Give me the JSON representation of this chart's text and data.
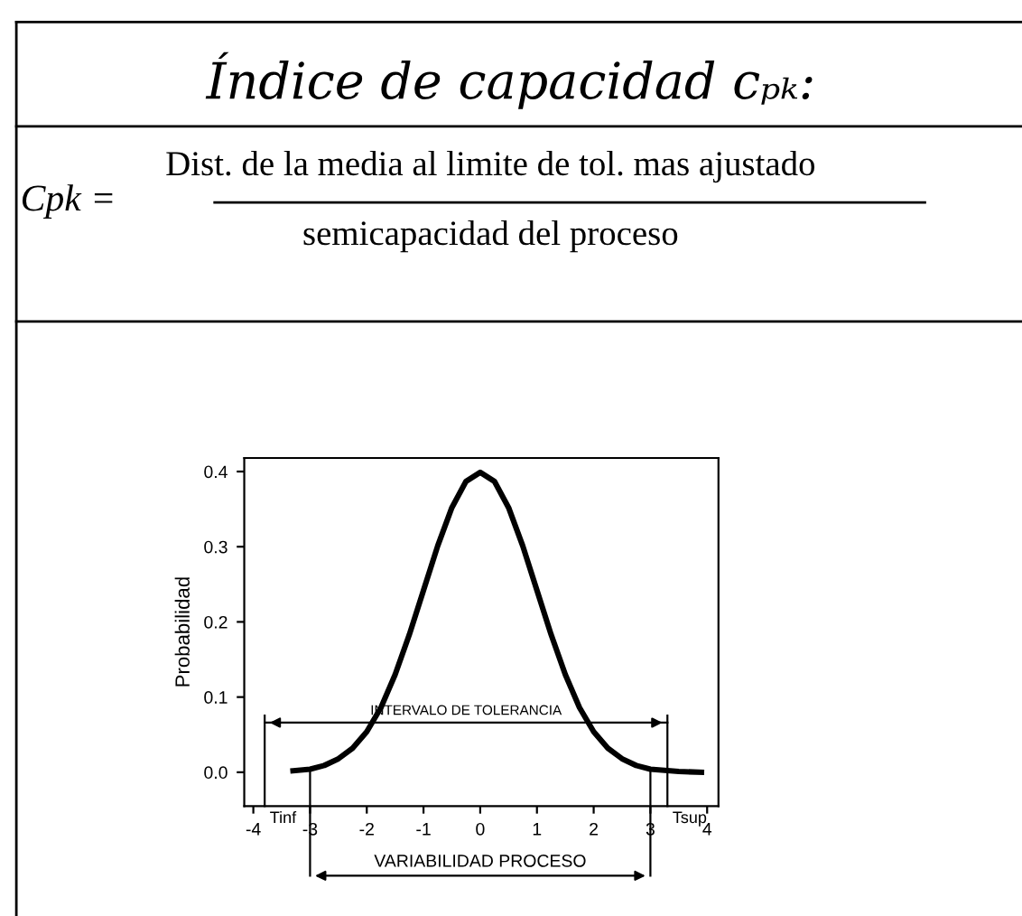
{
  "chart_data": {
    "type": "line",
    "title": "Índice de capacidad cₚₖ:",
    "annotations": [
      "Cpk =",
      "Dist. de la media al limite de tol. mas ajustado",
      "semicapacidad del proceso",
      "INTERVALO DE TOLERANCIA",
      "VARIABILIDAD PROCESO"
    ],
    "ylabel": "Probabilidad",
    "x": [
      -3.3,
      -3,
      -2.75,
      -2.5,
      -2.25,
      -2,
      -1.75,
      -1.5,
      -1.25,
      -1,
      -0.75,
      -0.5,
      -0.25,
      0,
      0.25,
      0.5,
      0.75,
      1,
      1.25,
      1.5,
      1.75,
      2,
      2.25,
      2.5,
      2.75,
      3,
      3.5,
      3.9
    ],
    "series": [
      {
        "color": "#000000",
        "values": [
          0.002,
          0.004,
          0.009,
          0.018,
          0.032,
          0.054,
          0.086,
          0.13,
          0.183,
          0.242,
          0.301,
          0.352,
          0.387,
          0.399,
          0.387,
          0.352,
          0.301,
          0.242,
          0.183,
          0.13,
          0.086,
          0.054,
          0.032,
          0.018,
          0.009,
          0.004,
          0.001,
          0.0
        ]
      },
      {
        "type": "line",
        "color": "#000000",
        "x": [
          -3.8,
          3.3
        ],
        "values": [
          0.066,
          0.066
        ]
      }
    ],
    "xlim": [
      -4.16,
      4.2
    ],
    "ylim": [
      -0.045,
      0.418
    ],
    "xticks": [
      -4,
      -3,
      -2,
      -1,
      0,
      1,
      2,
      3,
      4
    ],
    "yticks": [
      {
        "value": 0,
        "label": "0.0"
      },
      0.1,
      0.2,
      0.3,
      0.4
    ],
    "ref_lines": [
      {
        "axis": "x",
        "value": -3.8,
        "label": "Tinf"
      },
      {
        "axis": "x",
        "value": 3.3,
        "label": "Tsup"
      },
      {
        "axis": "x",
        "value": -3,
        "label": null
      },
      {
        "axis": "x",
        "value": 3,
        "label": null
      }
    ],
    "grid": false,
    "legend": false,
    "marker": "none",
    "line_style": "solid"
  }
}
